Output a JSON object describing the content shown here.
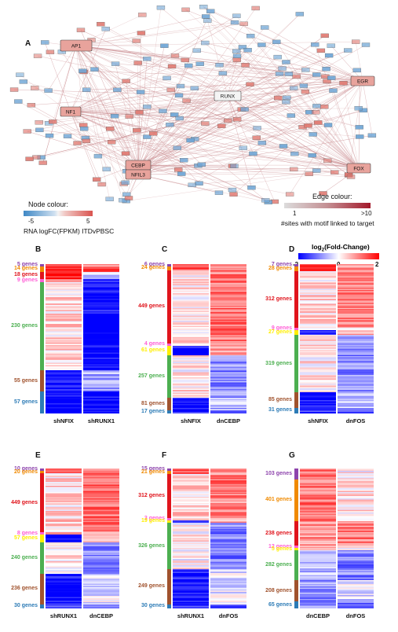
{
  "colors": {
    "edge": "#c98a8e",
    "node_up": "#e07a72",
    "node_down": "#6fa6d6",
    "purple": "#8e44ad",
    "orange": "#f08a00",
    "red": "#e0141c",
    "pink": "#ff5fd6",
    "yellow": "#ffee00",
    "green": "#4caf50",
    "brown": "#a0522d",
    "blue": "#2c7bb6",
    "heat_blue": "#0000ff",
    "heat_red": "#ff0000"
  },
  "network": {
    "letter": "A",
    "hubs": [
      {
        "id": "ap1",
        "label": "AP1"
      },
      {
        "id": "egr",
        "label": "EGR"
      },
      {
        "id": "runx",
        "label": "RUNX"
      },
      {
        "id": "nf1",
        "label": "NF1"
      },
      {
        "id": "cebp",
        "label": "CEBP"
      },
      {
        "id": "nfil3",
        "label": "NFIL3"
      },
      {
        "id": "fox",
        "label": "FOX"
      }
    ]
  },
  "node_colorbar": {
    "title": "Node colour:",
    "min": "-5",
    "max": "5",
    "label": "RNA logFC(FPKM) ITDvPBSC"
  },
  "edge_colorbar": {
    "title": "Edge colour:",
    "min": "1",
    "max": ">10",
    "label": "#sites with motif linked to target"
  },
  "heat_colorbar": {
    "title_main": "log",
    "title_sub": "2",
    "title_rest": "(Fold-Change)",
    "ticks": [
      "-2",
      "0",
      "2"
    ]
  },
  "heatmaps": [
    {
      "id": "B",
      "letter": "B",
      "columns": [
        "shNFIX",
        "shRUNX1"
      ],
      "groups": [
        {
          "label": "5 genes",
          "count": 5,
          "color": "purple",
          "col1": 0.8,
          "col2": 0.3
        },
        {
          "label": "14 genes",
          "count": 14,
          "color": "orange",
          "col1": 0.85,
          "col2": 0.7
        },
        {
          "label": "18 genes",
          "count": 18,
          "color": "red",
          "col1": 0.9,
          "col2": -0.2
        },
        {
          "label": "9 genes",
          "count": 9,
          "color": "pink",
          "col1": 0.3,
          "col2": -0.8
        },
        {
          "label": "230 genes",
          "count": 230,
          "color": "green",
          "col1": 0.15,
          "col2": -1.0
        },
        {
          "label": "55 genes",
          "count": 55,
          "color": "brown",
          "col1": -1.0,
          "col2": -0.3
        },
        {
          "label": "57 genes",
          "count": 57,
          "color": "blue",
          "col1": -1.0,
          "col2": -1.0
        }
      ]
    },
    {
      "id": "C",
      "letter": "C",
      "columns": [
        "shNFIX",
        "dnCEBP"
      ],
      "groups": [
        {
          "label": "6 genes",
          "count": 6,
          "color": "purple",
          "col1": 0.8,
          "col2": 0.5
        },
        {
          "label": "24 genes",
          "count": 24,
          "color": "orange",
          "col1": 0.7,
          "col2": 0.5
        },
        {
          "label": "449 genes",
          "count": 449,
          "color": "red",
          "col1": 0.1,
          "col2": 0.55
        },
        {
          "label": "4 genes",
          "count": 4,
          "color": "pink",
          "col1": 0.2,
          "col2": 0.3
        },
        {
          "label": "61 genes",
          "count": 61,
          "color": "yellow",
          "col1": -1.0,
          "col2": 0.4
        },
        {
          "label": "257 genes",
          "count": 257,
          "color": "green",
          "col1": 0.1,
          "col2": -0.45
        },
        {
          "label": "81 genes",
          "count": 81,
          "color": "brown",
          "col1": -1.0,
          "col2": -0.3
        },
        {
          "label": "17 genes",
          "count": 17,
          "color": "blue",
          "col1": -0.8,
          "col2": -0.8
        }
      ]
    },
    {
      "id": "D",
      "letter": "D",
      "columns": [
        "shNFIX",
        "dnFOS"
      ],
      "groups": [
        {
          "label": "7 genes",
          "count": 7,
          "color": "purple",
          "col1": 0.8,
          "col2": 0.4
        },
        {
          "label": "28 genes",
          "count": 28,
          "color": "orange",
          "col1": 0.7,
          "col2": 0.5
        },
        {
          "label": "312 genes",
          "count": 312,
          "color": "red",
          "col1": 0.15,
          "col2": 0.5
        },
        {
          "label": "9 genes",
          "count": 9,
          "color": "pink",
          "col1": 0.2,
          "col2": 0.2
        },
        {
          "label": "27 genes",
          "count": 27,
          "color": "yellow",
          "col1": -0.9,
          "col2": 0.3
        },
        {
          "label": "319 genes",
          "count": 319,
          "color": "green",
          "col1": 0.1,
          "col2": -0.45
        },
        {
          "label": "85 genes",
          "count": 85,
          "color": "brown",
          "col1": -1.0,
          "col2": -0.2
        },
        {
          "label": "31 genes",
          "count": 31,
          "color": "blue",
          "col1": -0.8,
          "col2": -0.8
        }
      ]
    },
    {
      "id": "E",
      "letter": "E",
      "columns": [
        "shRUNX1",
        "dnCEBP"
      ],
      "groups": [
        {
          "label": "10 genes",
          "count": 10,
          "color": "purple",
          "col1": 0.8,
          "col2": 0.5
        },
        {
          "label": "20 genes",
          "count": 20,
          "color": "orange",
          "col1": 0.7,
          "col2": 0.5
        },
        {
          "label": "449 genes",
          "count": 449,
          "color": "red",
          "col1": 0.15,
          "col2": 0.55
        },
        {
          "label": "8 genes",
          "count": 8,
          "color": "pink",
          "col1": 0.2,
          "col2": 0.3
        },
        {
          "label": "57 genes",
          "count": 57,
          "color": "yellow",
          "col1": -1.0,
          "col2": 0.4
        },
        {
          "label": "240 genes",
          "count": 240,
          "color": "green",
          "col1": 0.1,
          "col2": -0.45
        },
        {
          "label": "236 genes",
          "count": 236,
          "color": "brown",
          "col1": -0.95,
          "col2": -0.1
        },
        {
          "label": "30 genes",
          "count": 30,
          "color": "blue",
          "col1": -0.8,
          "col2": -0.7
        }
      ]
    },
    {
      "id": "F",
      "letter": "F",
      "columns": [
        "shRUNX1",
        "dnFOS"
      ],
      "groups": [
        {
          "label": "15 genes",
          "count": 15,
          "color": "purple",
          "col1": 0.8,
          "col2": 0.4
        },
        {
          "label": "21 genes",
          "count": 21,
          "color": "orange",
          "col1": 0.75,
          "col2": 0.5
        },
        {
          "label": "312 genes",
          "count": 312,
          "color": "red",
          "col1": 0.15,
          "col2": 0.5
        },
        {
          "label": "3 genes",
          "count": 3,
          "color": "pink",
          "col1": 0.2,
          "col2": 0.2
        },
        {
          "label": "19 genes",
          "count": 19,
          "color": "yellow",
          "col1": -0.9,
          "col2": 0.3
        },
        {
          "label": "326 genes",
          "count": 326,
          "color": "green",
          "col1": 0.05,
          "col2": -0.5
        },
        {
          "label": "249 genes",
          "count": 249,
          "color": "brown",
          "col1": -0.95,
          "col2": -0.1
        },
        {
          "label": "30 genes",
          "count": 30,
          "color": "blue",
          "col1": -0.8,
          "col2": -0.7
        }
      ]
    },
    {
      "id": "G",
      "letter": "G",
      "columns": [
        "dnCEBP",
        "dnFOS"
      ],
      "groups": [
        {
          "label": "103 genes",
          "count": 103,
          "color": "purple",
          "col1": 0.5,
          "col2": 0.05
        },
        {
          "label": "401 genes",
          "count": 401,
          "color": "orange",
          "col1": 0.55,
          "col2": 0.1
        },
        {
          "label": "238 genes",
          "count": 238,
          "color": "red",
          "col1": 0.4,
          "col2": 0.5
        },
        {
          "label": "12 genes",
          "count": 12,
          "color": "pink",
          "col1": 0.3,
          "col2": 0.2
        },
        {
          "label": "5 genes",
          "count": 5,
          "color": "yellow",
          "col1": 0.3,
          "col2": 0.1
        },
        {
          "label": "282 genes",
          "count": 282,
          "color": "green",
          "col1": -0.3,
          "col2": -0.5
        },
        {
          "label": "208 genes",
          "count": 208,
          "color": "brown",
          "col1": -0.45,
          "col2": -0.15
        },
        {
          "label": "65 genes",
          "count": 65,
          "color": "blue",
          "col1": -0.5,
          "col2": -0.6
        }
      ]
    }
  ]
}
